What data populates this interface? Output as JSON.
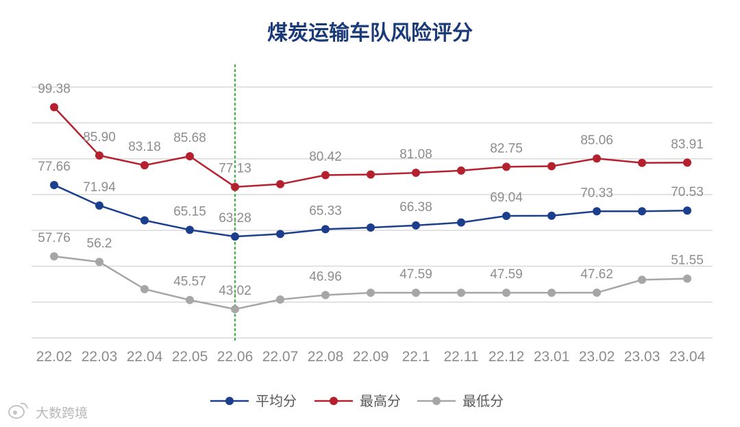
{
  "chart_data": {
    "type": "line",
    "title": "煤炭运输车队风险评分",
    "xlabel": "",
    "ylabel": "",
    "ylim": [
      35,
      105
    ],
    "grid": true,
    "legend_position": "bottom",
    "categories": [
      "22.02",
      "22.03",
      "22.04",
      "22.05",
      "22.06",
      "22.07",
      "22.08",
      "22.09",
      "22.1",
      "22.11",
      "22.12",
      "23.01",
      "23.02",
      "23.03",
      "23.04"
    ],
    "highlight_category": "22.06",
    "series": [
      {
        "name": "平均分",
        "color": "#1b3f8c",
        "values": [
          77.66,
          71.94,
          67.8,
          65.15,
          63.28,
          64.0,
          65.33,
          65.8,
          66.38,
          67.2,
          69.04,
          69.1,
          70.33,
          70.33,
          70.53
        ],
        "labels": [
          "77.66",
          "71.94",
          "",
          "65.15",
          "63.28",
          "",
          "65.33",
          "",
          "66.38",
          "",
          "69.04",
          "",
          "70.33",
          "",
          "70.53"
        ]
      },
      {
        "name": "最高分",
        "color": "#b5202e",
        "values": [
          99.38,
          85.9,
          83.18,
          85.68,
          77.13,
          77.9,
          80.42,
          80.6,
          81.08,
          81.7,
          82.75,
          82.9,
          85.06,
          83.85,
          83.91
        ],
        "labels": [
          "99.38",
          "85.90",
          "83.18",
          "85.68",
          "77.13",
          "",
          "80.42",
          "",
          "81.08",
          "",
          "82.75",
          "",
          "85.06",
          "",
          "83.91"
        ]
      },
      {
        "name": "最低分",
        "color": "#a6a6a6",
        "values": [
          57.76,
          56.2,
          48.6,
          45.57,
          43.02,
          45.7,
          46.96,
          47.59,
          47.59,
          47.59,
          47.59,
          47.59,
          47.62,
          51.2,
          51.55
        ],
        "labels": [
          "57.76",
          "56.2",
          "",
          "45.57",
          "43.02",
          "",
          "46.96",
          "",
          "47.59",
          "",
          "47.59",
          "",
          "47.62",
          "",
          "51.55"
        ]
      }
    ]
  },
  "colors": {
    "title": "#1b3a78",
    "grid": "#d9d9d9",
    "highlight_line": "#4caf50"
  },
  "watermark": {
    "icon": "weibo-logo-icon",
    "text": "大数跨境"
  }
}
